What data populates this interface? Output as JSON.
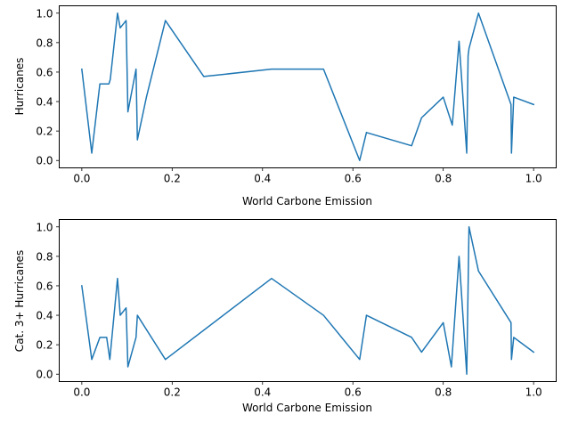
{
  "chart_data": [
    {
      "type": "line",
      "xlabel": "World Carbone Emission",
      "ylabel": "Hurricanes",
      "xlim": [
        -0.05,
        1.05
      ],
      "ylim": [
        -0.05,
        1.05
      ],
      "xticks": [
        0.0,
        0.2,
        0.4,
        0.6,
        0.8,
        1.0
      ],
      "xtick_labels": [
        "0.0",
        "0.2",
        "0.4",
        "0.6",
        "0.8",
        "1.0"
      ],
      "yticks": [
        0.0,
        0.2,
        0.4,
        0.6,
        0.8,
        1.0
      ],
      "ytick_labels": [
        "0.0",
        "0.2",
        "0.4",
        "0.6",
        "0.8",
        "1.0"
      ],
      "grid": false,
      "line_color": "#1f77b4",
      "series": [
        {
          "x": [
            0.0,
            0.022,
            0.04,
            0.05,
            0.06,
            0.063,
            0.079,
            0.085,
            0.098,
            0.102,
            0.12,
            0.123,
            0.143,
            0.185,
            0.27,
            0.42,
            0.535,
            0.615,
            0.63,
            0.73,
            0.752,
            0.8,
            0.82,
            0.835,
            0.852,
            0.855,
            0.857,
            0.878,
            0.95,
            0.951,
            0.956,
            1.0
          ],
          "y": [
            0.62,
            0.05,
            0.52,
            0.52,
            0.52,
            0.55,
            1.0,
            0.9,
            0.95,
            0.33,
            0.62,
            0.14,
            0.43,
            0.95,
            0.57,
            0.62,
            0.62,
            0.0,
            0.19,
            0.1,
            0.29,
            0.43,
            0.24,
            0.81,
            0.05,
            0.71,
            0.76,
            1.0,
            0.38,
            0.05,
            0.43,
            0.38
          ]
        }
      ]
    },
    {
      "type": "line",
      "xlabel": "World Carbone Emission",
      "ylabel": "Cat. 3+ Hurricanes",
      "xlim": [
        -0.05,
        1.05
      ],
      "ylim": [
        -0.05,
        1.05
      ],
      "xticks": [
        0.0,
        0.2,
        0.4,
        0.6,
        0.8,
        1.0
      ],
      "xtick_labels": [
        "0.0",
        "0.2",
        "0.4",
        "0.6",
        "0.8",
        "1.0"
      ],
      "yticks": [
        0.0,
        0.2,
        0.4,
        0.6,
        0.8,
        1.0
      ],
      "ytick_labels": [
        "0.0",
        "0.2",
        "0.4",
        "0.6",
        "0.8",
        "1.0"
      ],
      "grid": false,
      "line_color": "#1f77b4",
      "series": [
        {
          "x": [
            0.0,
            0.022,
            0.04,
            0.055,
            0.062,
            0.079,
            0.085,
            0.098,
            0.102,
            0.12,
            0.123,
            0.185,
            0.42,
            0.535,
            0.615,
            0.63,
            0.73,
            0.752,
            0.8,
            0.818,
            0.835,
            0.852,
            0.857,
            0.878,
            0.95,
            0.951,
            0.956,
            1.0
          ],
          "y": [
            0.6,
            0.1,
            0.25,
            0.25,
            0.1,
            0.65,
            0.4,
            0.45,
            0.05,
            0.25,
            0.4,
            0.1,
            0.65,
            0.4,
            0.1,
            0.4,
            0.25,
            0.15,
            0.35,
            0.05,
            0.8,
            0.0,
            1.0,
            0.7,
            0.35,
            0.1,
            0.25,
            0.15
          ]
        }
      ]
    }
  ]
}
